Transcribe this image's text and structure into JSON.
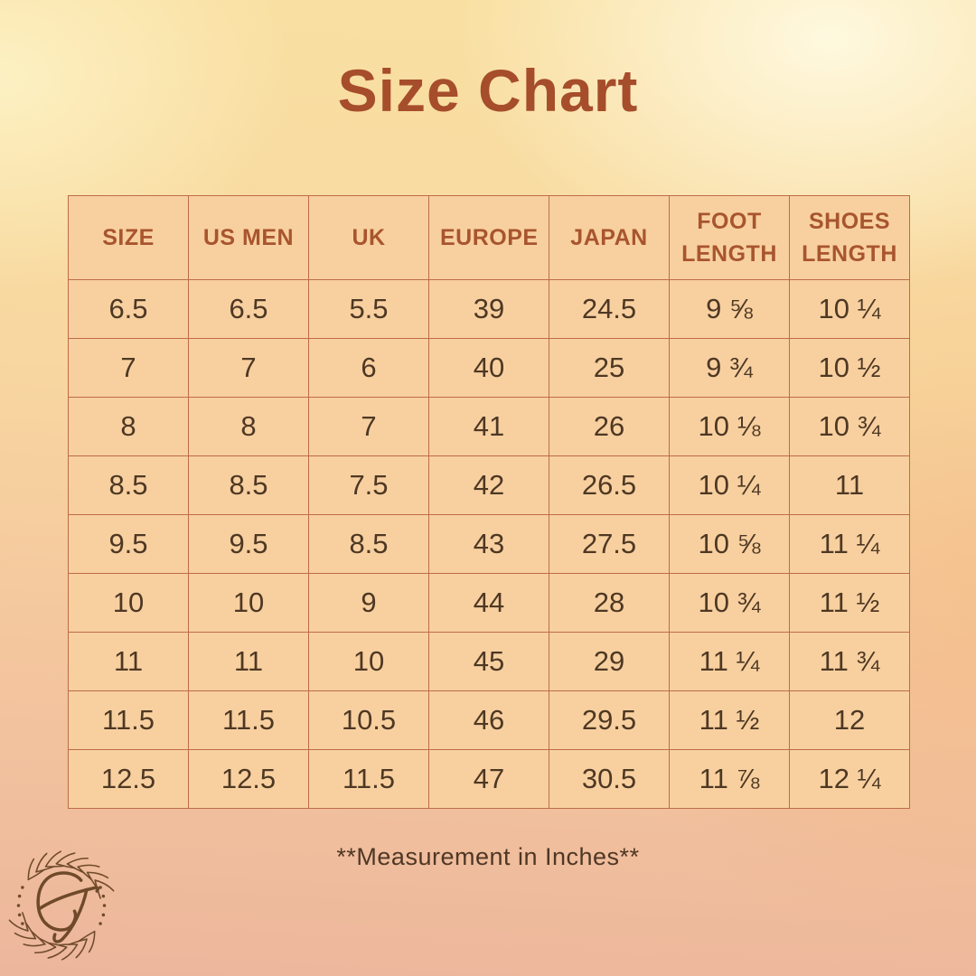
{
  "chart_data": {
    "type": "table",
    "title": "Size Chart",
    "columns": [
      "SIZE",
      "US MEN",
      "UK",
      "EUROPE",
      "JAPAN",
      "FOOT LENGTH",
      "SHOES LENGTH"
    ],
    "rows": [
      [
        "6.5",
        "6.5",
        "5.5",
        "39",
        "24.5",
        "9 ⅝",
        "10 ¼"
      ],
      [
        "7",
        "7",
        "6",
        "40",
        "25",
        "9 ¾",
        "10 ½"
      ],
      [
        "8",
        "8",
        "7",
        "41",
        "26",
        "10 ⅛",
        "10 ¾"
      ],
      [
        "8.5",
        "8.5",
        "7.5",
        "42",
        "26.5",
        "10 ¼",
        "11"
      ],
      [
        "9.5",
        "9.5",
        "8.5",
        "43",
        "27.5",
        "10 ⅝",
        "11 ¼"
      ],
      [
        "10",
        "10",
        "9",
        "44",
        "28",
        "10 ¾",
        "11 ½"
      ],
      [
        "11",
        "11",
        "10",
        "45",
        "29",
        "11 ¼",
        "11 ¾"
      ],
      [
        "11.5",
        "11.5",
        "10.5",
        "46",
        "29.5",
        "11 ½",
        "12"
      ],
      [
        "12.5",
        "12.5",
        "11.5",
        "47",
        "30.5",
        "11 ⅞",
        "12 ¼"
      ]
    ],
    "note": "**Measurement in Inches**"
  },
  "logo": {
    "monogram": "G",
    "description": "wreath-monogram"
  },
  "colors": {
    "title_text": "#A64D2B",
    "header_text": "#A8552E",
    "cell_text": "#4E3823",
    "cell_background": "#F8D0A0",
    "table_border": "#BE6B48",
    "logo_brown": "#6F4A2A"
  }
}
